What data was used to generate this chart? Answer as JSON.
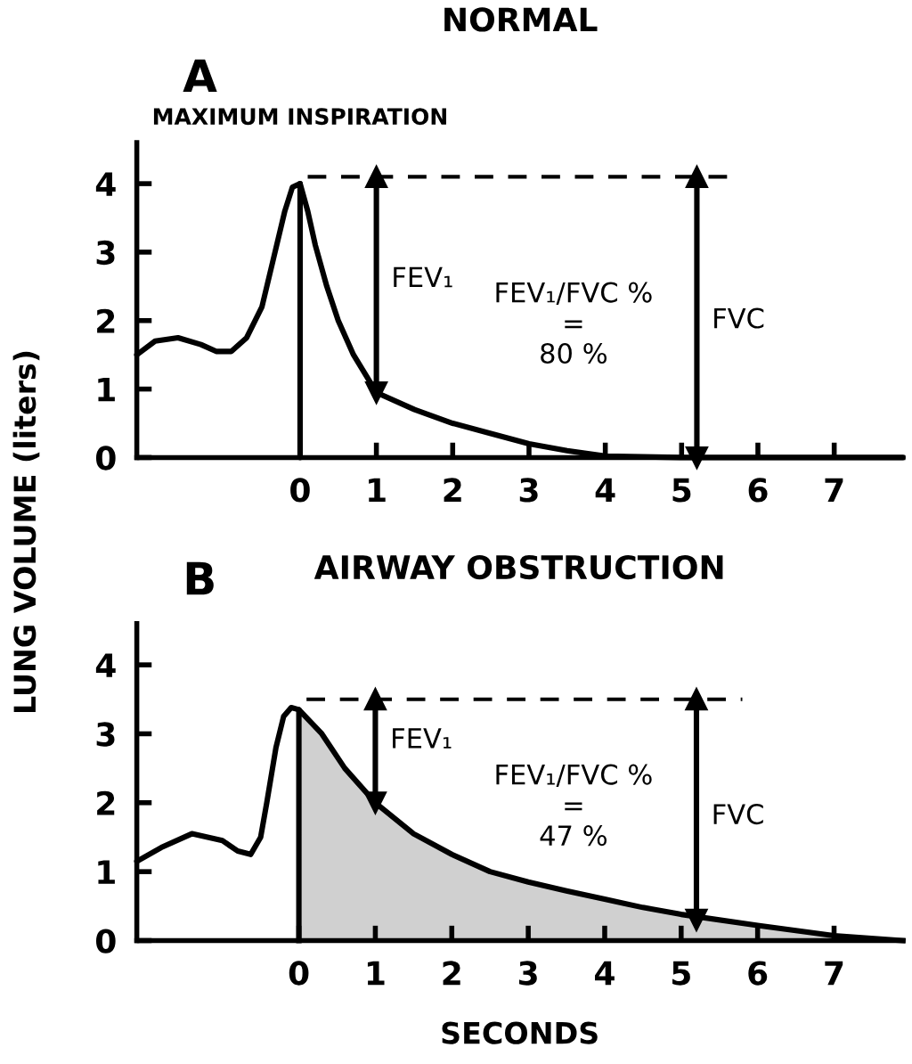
{
  "chart_data": [
    {
      "type": "line",
      "title": "NORMAL",
      "ylabel": "LUNG VOLUME (liters)",
      "annotations": [
        "A",
        "FEV₁/FVC %\n=\n80 %",
        {
          "text": "MAXIMUM INSPIRATION",
          "x": 0,
          "y": 4
        },
        {
          "text": "FEV₁",
          "x": 1,
          "y": 2.6
        },
        {
          "text": "FVC",
          "x": 5.2,
          "y": 2.0
        }
      ],
      "series": [
        {
          "color": "#000000",
          "x": [
            -2.14,
            -1.9,
            -1.6,
            -1.3,
            -1.1,
            -0.9,
            -0.7,
            -0.5,
            -0.35,
            -0.2,
            -0.1,
            0,
            0.1,
            0.2,
            0.35,
            0.5,
            0.7,
            1.0,
            1.5,
            2,
            2.5,
            3,
            3.5,
            4,
            5,
            6,
            7,
            7.9
          ],
          "values": [
            1.5,
            1.7,
            1.75,
            1.65,
            1.55,
            1.55,
            1.75,
            2.2,
            2.9,
            3.6,
            3.95,
            4.0,
            3.6,
            3.1,
            2.5,
            2.0,
            1.5,
            0.95,
            0.7,
            0.5,
            0.35,
            0.2,
            0.1,
            0.02,
            0,
            0,
            0,
            0
          ]
        },
        {
          "color": "#000000",
          "x": [
            0,
            0
          ],
          "values": [
            0,
            4.0
          ]
        },
        {
          "color": "#000000",
          "line_style": "dashed",
          "x": [
            0.1,
            5.6
          ],
          "values": [
            4.1,
            4.1
          ]
        },
        {
          "color": "#000000",
          "marker": "triangle",
          "x": [
            1,
            1
          ],
          "values": [
            4.1,
            0.95
          ]
        },
        {
          "color": "#000000",
          "marker": "triangle",
          "x": [
            5.2,
            5.2
          ],
          "values": [
            4.1,
            0
          ]
        }
      ],
      "xlim": [
        -2.14,
        7.9
      ],
      "ylim": [
        0,
        4.6
      ],
      "xticks": [
        0,
        1,
        2,
        3,
        4,
        5,
        6,
        7
      ],
      "yticks": [
        0,
        1,
        2,
        3,
        4
      ],
      "grid": false,
      "legend": false
    },
    {
      "type": "line",
      "title": "AIRWAY OBSTRUCTION",
      "xlabel": "SECONDS",
      "annotations": [
        "B",
        "FEV₁/FVC %\n=\n47 %",
        {
          "text": "FEV₁",
          "x": 1,
          "y": 2.9
        },
        {
          "text": "FVC",
          "x": 5.2,
          "y": 1.8
        }
      ],
      "series": [
        {
          "color": "#000000",
          "x": [
            -2.12,
            -1.8,
            -1.4,
            -1.0,
            -0.8,
            -0.63,
            -0.5,
            -0.42,
            -0.3,
            -0.2,
            -0.1,
            0
          ],
          "values": [
            1.15,
            1.35,
            1.55,
            1.45,
            1.3,
            1.25,
            1.5,
            2.0,
            2.8,
            3.25,
            3.38,
            3.35
          ]
        },
        {
          "type": "area",
          "color": "#d0d0d0",
          "x": [
            0,
            0.3,
            0.6,
            1,
            1.5,
            2,
            2.5,
            3,
            3.5,
            4,
            4.5,
            5,
            6,
            7,
            7.9
          ],
          "values": [
            3.35,
            3.0,
            2.5,
            2.0,
            1.55,
            1.25,
            1.0,
            0.85,
            0.72,
            0.6,
            0.48,
            0.38,
            0.22,
            0.07,
            0
          ]
        },
        {
          "color": "#000000",
          "line_style": "dashed",
          "x": [
            0.1,
            5.8
          ],
          "values": [
            3.5,
            3.5
          ]
        },
        {
          "color": "#000000",
          "marker": "triangle",
          "x": [
            1,
            1
          ],
          "values": [
            3.5,
            2.0
          ]
        },
        {
          "color": "#000000",
          "marker": "triangle",
          "x": [
            5.2,
            5.2
          ],
          "values": [
            3.5,
            0.3
          ]
        }
      ],
      "xlim": [
        -2.12,
        7.9
      ],
      "ylim": [
        0,
        4.6
      ],
      "xticks": [
        0,
        1,
        2,
        3,
        4,
        5,
        6,
        7
      ],
      "yticks": [
        0,
        1,
        2,
        3,
        4
      ],
      "grid": false,
      "legend": false
    }
  ]
}
